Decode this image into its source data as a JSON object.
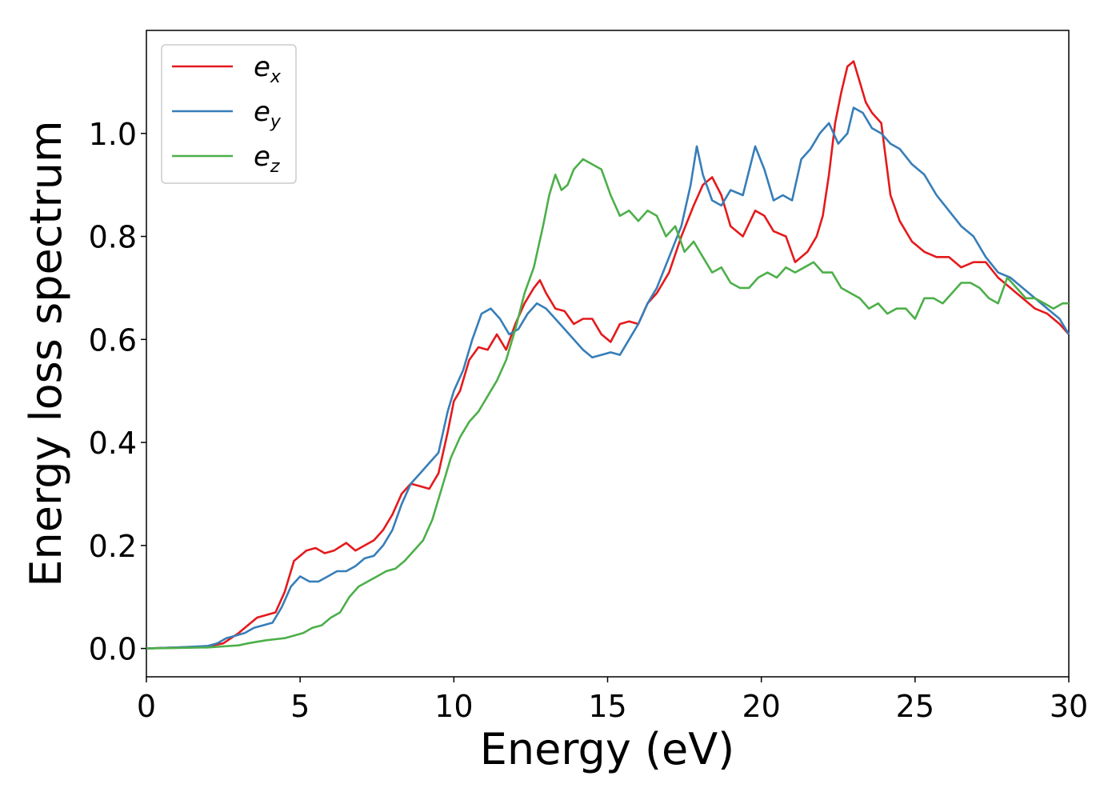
{
  "chart_data": {
    "type": "line",
    "xlabel": "Energy (eV)",
    "ylabel": "Energy loss spectrum",
    "xlim": [
      0,
      30
    ],
    "ylim": [
      -0.055,
      1.2
    ],
    "xticks": [
      0,
      5,
      10,
      15,
      20,
      25,
      30
    ],
    "xtick_labels": [
      "0",
      "5",
      "10",
      "15",
      "20",
      "25",
      "30"
    ],
    "yticks": [
      0.0,
      0.2,
      0.4,
      0.6,
      0.8,
      1.0
    ],
    "ytick_labels": [
      "0.0",
      "0.2",
      "0.4",
      "0.6",
      "0.8",
      "1.0"
    ],
    "grid": false,
    "legend_position": "top-left",
    "series": [
      {
        "name": "e_x",
        "label_base": "e",
        "label_sub": "x",
        "color": "#e41a1c",
        "x": [
          0,
          1,
          2,
          2.5,
          3,
          3.3,
          3.6,
          3.9,
          4.2,
          4.5,
          4.8,
          5,
          5.2,
          5.5,
          5.8,
          6.1,
          6.5,
          6.8,
          7.1,
          7.4,
          7.7,
          8,
          8.3,
          8.6,
          8.9,
          9.2,
          9.5,
          9.8,
          10,
          10.2,
          10.5,
          10.8,
          11.1,
          11.4,
          11.7,
          12,
          12.3,
          12.6,
          12.8,
          13,
          13.3,
          13.6,
          13.9,
          14.2,
          14.5,
          14.8,
          15.1,
          15.4,
          15.7,
          16,
          16.3,
          16.6,
          17,
          17.4,
          17.8,
          18.1,
          18.4,
          18.7,
          19,
          19.4,
          19.8,
          20.1,
          20.4,
          20.8,
          21.1,
          21.5,
          21.8,
          22,
          22.2,
          22.4,
          22.6,
          22.8,
          23,
          23.2,
          23.4,
          23.6,
          23.9,
          24.2,
          24.5,
          24.9,
          25.3,
          25.7,
          26.1,
          26.5,
          26.9,
          27.3,
          27.7,
          28.1,
          28.5,
          28.9,
          29.3,
          29.7,
          30
        ],
        "y": [
          0,
          0.002,
          0.004,
          0.01,
          0.03,
          0.045,
          0.06,
          0.065,
          0.07,
          0.11,
          0.17,
          0.18,
          0.19,
          0.195,
          0.185,
          0.19,
          0.205,
          0.19,
          0.2,
          0.21,
          0.23,
          0.26,
          0.3,
          0.32,
          0.315,
          0.31,
          0.34,
          0.42,
          0.48,
          0.5,
          0.56,
          0.585,
          0.58,
          0.61,
          0.58,
          0.63,
          0.67,
          0.7,
          0.715,
          0.69,
          0.66,
          0.655,
          0.63,
          0.64,
          0.64,
          0.61,
          0.595,
          0.63,
          0.635,
          0.63,
          0.67,
          0.69,
          0.73,
          0.8,
          0.86,
          0.9,
          0.915,
          0.88,
          0.82,
          0.8,
          0.85,
          0.84,
          0.81,
          0.8,
          0.75,
          0.77,
          0.8,
          0.84,
          0.92,
          1.02,
          1.08,
          1.13,
          1.14,
          1.1,
          1.06,
          1.04,
          1.02,
          0.88,
          0.83,
          0.79,
          0.77,
          0.76,
          0.76,
          0.74,
          0.75,
          0.75,
          0.72,
          0.7,
          0.68,
          0.66,
          0.65,
          0.63,
          0.61
        ]
      },
      {
        "name": "e_y",
        "label_base": "e",
        "label_sub": "y",
        "color": "#377eb8",
        "x": [
          0,
          1,
          2,
          2.3,
          2.6,
          2.9,
          3.2,
          3.5,
          3.8,
          4.1,
          4.4,
          4.7,
          5,
          5.3,
          5.6,
          5.9,
          6.2,
          6.5,
          6.8,
          7.1,
          7.4,
          7.7,
          8,
          8.3,
          8.6,
          8.9,
          9.2,
          9.5,
          9.8,
          10,
          10.3,
          10.6,
          10.9,
          11.2,
          11.5,
          11.8,
          12.1,
          12.4,
          12.7,
          13,
          13.3,
          13.6,
          13.9,
          14.2,
          14.5,
          14.8,
          15.1,
          15.4,
          15.7,
          16,
          16.3,
          16.6,
          17,
          17.4,
          17.7,
          17.9,
          18.1,
          18.4,
          18.7,
          19,
          19.4,
          19.8,
          20.1,
          20.4,
          20.7,
          21,
          21.3,
          21.6,
          21.9,
          22.2,
          22.5,
          22.8,
          23,
          23.3,
          23.6,
          23.9,
          24.2,
          24.5,
          24.9,
          25.3,
          25.7,
          26.1,
          26.5,
          26.9,
          27.3,
          27.7,
          28.1,
          28.5,
          28.9,
          29.3,
          29.7,
          30
        ],
        "y": [
          0,
          0.002,
          0.005,
          0.01,
          0.02,
          0.025,
          0.03,
          0.04,
          0.045,
          0.05,
          0.08,
          0.12,
          0.14,
          0.13,
          0.13,
          0.14,
          0.15,
          0.15,
          0.16,
          0.175,
          0.18,
          0.2,
          0.23,
          0.28,
          0.32,
          0.34,
          0.36,
          0.38,
          0.46,
          0.5,
          0.54,
          0.6,
          0.65,
          0.66,
          0.64,
          0.61,
          0.62,
          0.65,
          0.67,
          0.66,
          0.64,
          0.62,
          0.6,
          0.58,
          0.565,
          0.57,
          0.575,
          0.57,
          0.6,
          0.63,
          0.67,
          0.7,
          0.76,
          0.82,
          0.9,
          0.975,
          0.92,
          0.87,
          0.86,
          0.89,
          0.88,
          0.975,
          0.93,
          0.87,
          0.88,
          0.87,
          0.95,
          0.97,
          1.0,
          1.02,
          0.98,
          1.0,
          1.05,
          1.04,
          1.01,
          1.0,
          0.98,
          0.97,
          0.94,
          0.92,
          0.88,
          0.85,
          0.82,
          0.8,
          0.76,
          0.73,
          0.72,
          0.7,
          0.68,
          0.66,
          0.64,
          0.61
        ]
      },
      {
        "name": "e_z",
        "label_base": "e",
        "label_sub": "z",
        "color": "#4daf4a",
        "x": [
          0,
          1,
          2,
          2.5,
          3,
          3.3,
          3.6,
          3.9,
          4.2,
          4.5,
          4.8,
          5.1,
          5.4,
          5.7,
          6,
          6.3,
          6.6,
          6.9,
          7.2,
          7.5,
          7.8,
          8.1,
          8.4,
          8.7,
          9,
          9.3,
          9.6,
          9.9,
          10.2,
          10.5,
          10.8,
          11.1,
          11.4,
          11.7,
          12,
          12.3,
          12.6,
          12.9,
          13.1,
          13.3,
          13.5,
          13.7,
          13.9,
          14.2,
          14.5,
          14.8,
          15.1,
          15.4,
          15.7,
          16,
          16.3,
          16.6,
          16.9,
          17.2,
          17.5,
          17.8,
          18.1,
          18.4,
          18.7,
          19,
          19.3,
          19.6,
          19.9,
          20.2,
          20.5,
          20.8,
          21.1,
          21.4,
          21.7,
          22,
          22.3,
          22.6,
          22.9,
          23.2,
          23.5,
          23.8,
          24.1,
          24.4,
          24.7,
          25,
          25.3,
          25.6,
          25.9,
          26.2,
          26.5,
          26.8,
          27.1,
          27.4,
          27.7,
          28,
          28.3,
          28.6,
          28.9,
          29.2,
          29.5,
          29.8,
          30
        ],
        "y": [
          0,
          0.001,
          0.002,
          0.004,
          0.006,
          0.01,
          0.013,
          0.016,
          0.018,
          0.02,
          0.025,
          0.03,
          0.04,
          0.045,
          0.06,
          0.07,
          0.1,
          0.12,
          0.13,
          0.14,
          0.15,
          0.155,
          0.17,
          0.19,
          0.21,
          0.25,
          0.31,
          0.37,
          0.41,
          0.44,
          0.46,
          0.49,
          0.52,
          0.56,
          0.62,
          0.69,
          0.74,
          0.82,
          0.88,
          0.92,
          0.89,
          0.9,
          0.93,
          0.95,
          0.94,
          0.93,
          0.88,
          0.84,
          0.85,
          0.83,
          0.85,
          0.84,
          0.8,
          0.82,
          0.77,
          0.79,
          0.76,
          0.73,
          0.74,
          0.71,
          0.7,
          0.7,
          0.72,
          0.73,
          0.72,
          0.74,
          0.73,
          0.74,
          0.75,
          0.73,
          0.73,
          0.7,
          0.69,
          0.68,
          0.66,
          0.67,
          0.65,
          0.66,
          0.66,
          0.64,
          0.68,
          0.68,
          0.67,
          0.69,
          0.71,
          0.71,
          0.7,
          0.68,
          0.67,
          0.72,
          0.7,
          0.68,
          0.68,
          0.67,
          0.66,
          0.67,
          0.67
        ]
      }
    ]
  }
}
